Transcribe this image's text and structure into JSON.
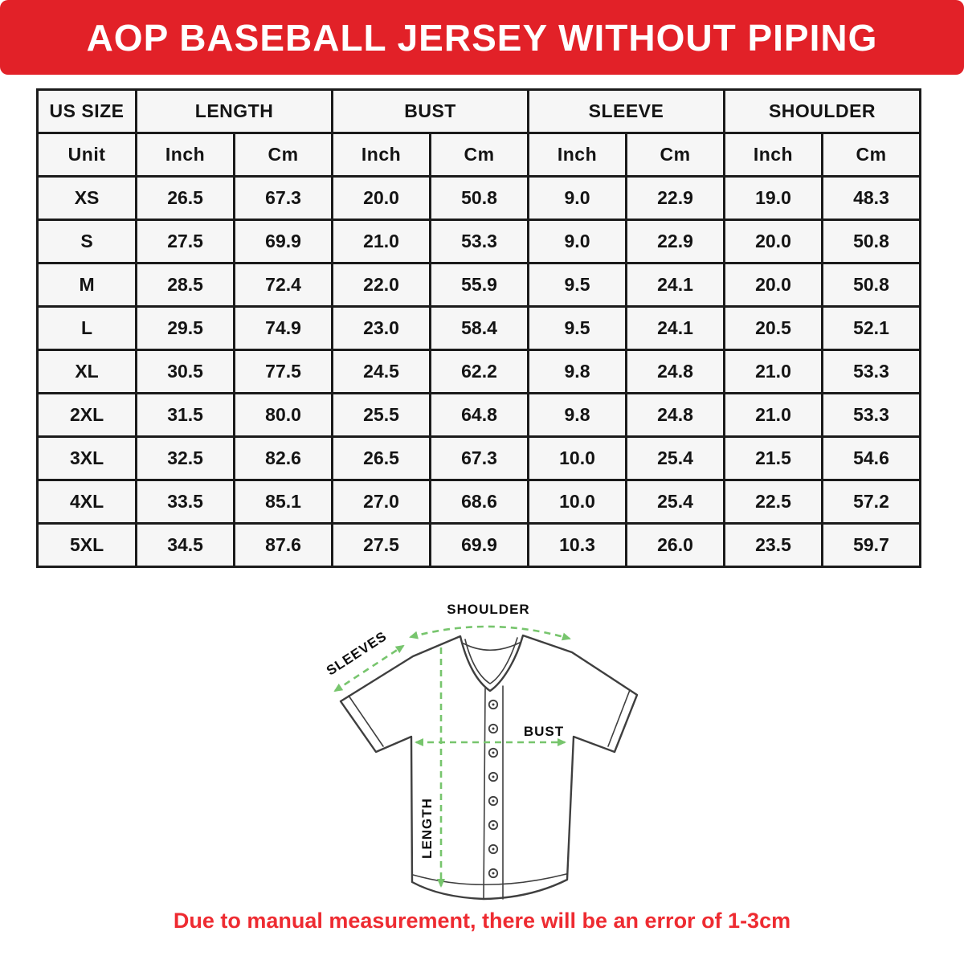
{
  "header": {
    "title": "AOP BASEBALL JERSEY WITHOUT PIPING"
  },
  "table": {
    "groups": [
      {
        "label": "US SIZE"
      },
      {
        "label": "LENGTH"
      },
      {
        "label": "BUST"
      },
      {
        "label": "SLEEVE"
      },
      {
        "label": "SHOULDER"
      }
    ],
    "unit_row": {
      "label": "Unit",
      "units": [
        "Inch",
        "Cm",
        "Inch",
        "Cm",
        "Inch",
        "Cm",
        "Inch",
        "Cm"
      ]
    },
    "rows": [
      {
        "size": "XS",
        "values": [
          "26.5",
          "67.3",
          "20.0",
          "50.8",
          "9.0",
          "22.9",
          "19.0",
          "48.3"
        ]
      },
      {
        "size": "S",
        "values": [
          "27.5",
          "69.9",
          "21.0",
          "53.3",
          "9.0",
          "22.9",
          "20.0",
          "50.8"
        ]
      },
      {
        "size": "M",
        "values": [
          "28.5",
          "72.4",
          "22.0",
          "55.9",
          "9.5",
          "24.1",
          "20.0",
          "50.8"
        ]
      },
      {
        "size": "L",
        "values": [
          "29.5",
          "74.9",
          "23.0",
          "58.4",
          "9.5",
          "24.1",
          "20.5",
          "52.1"
        ]
      },
      {
        "size": "XL",
        "values": [
          "30.5",
          "77.5",
          "24.5",
          "62.2",
          "9.8",
          "24.8",
          "21.0",
          "53.3"
        ]
      },
      {
        "size": "2XL",
        "values": [
          "31.5",
          "80.0",
          "25.5",
          "64.8",
          "9.8",
          "24.8",
          "21.0",
          "53.3"
        ]
      },
      {
        "size": "3XL",
        "values": [
          "32.5",
          "82.6",
          "26.5",
          "67.3",
          "10.0",
          "25.4",
          "21.5",
          "54.6"
        ]
      },
      {
        "size": "4XL",
        "values": [
          "33.5",
          "85.1",
          "27.0",
          "68.6",
          "10.0",
          "25.4",
          "22.5",
          "57.2"
        ]
      },
      {
        "size": "5XL",
        "values": [
          "34.5",
          "87.6",
          "27.5",
          "69.9",
          "10.3",
          "26.0",
          "23.5",
          "59.7"
        ]
      }
    ]
  },
  "diagram": {
    "labels": {
      "shoulder": "SHOULDER",
      "sleeves": "SLEEVES",
      "bust": "BUST",
      "length": "LENGTH"
    }
  },
  "footer": {
    "note": "Due to manual measurement, there will be an error of 1-3cm"
  },
  "colors": {
    "banner_red": "#e22128",
    "note_red": "#ee2b31",
    "arrow_green": "#77c56d",
    "outline_gray": "#3f3f3f"
  }
}
